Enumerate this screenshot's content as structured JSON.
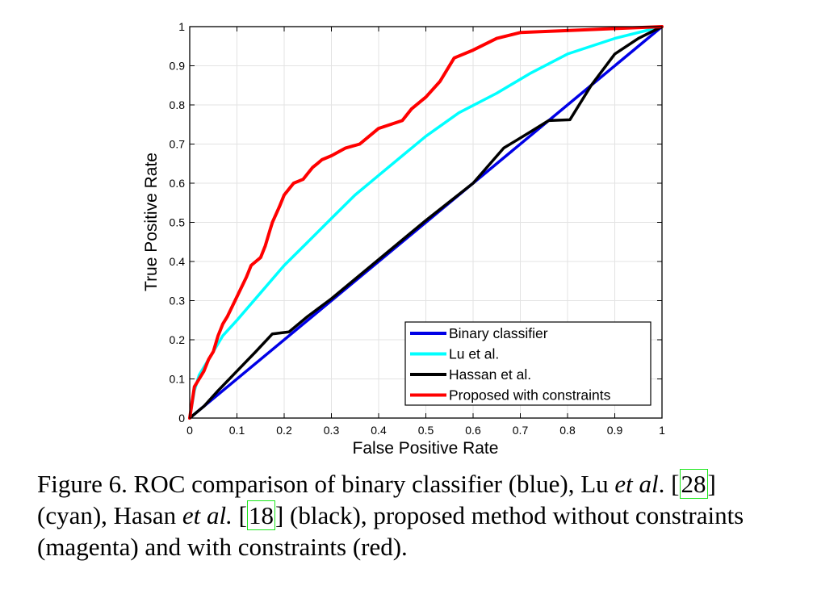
{
  "chart_data": {
    "type": "line",
    "xlabel": "False Positive Rate",
    "ylabel": "True Positive Rate",
    "xlim": [
      0,
      1
    ],
    "ylim": [
      0,
      1
    ],
    "grid": true,
    "legend_position": "bottom-right",
    "x_ticks": [
      "0",
      "0.1",
      "0.2",
      "0.3",
      "0.4",
      "0.5",
      "0.6",
      "0.7",
      "0.8",
      "0.9",
      "1"
    ],
    "y_ticks": [
      "0",
      "0.1",
      "0.2",
      "0.3",
      "0.4",
      "0.5",
      "0.6",
      "0.7",
      "0.8",
      "0.9",
      "1"
    ],
    "series": [
      {
        "name": "Binary classifier",
        "color": "#0000e6",
        "x": [
          0,
          1
        ],
        "y": [
          0,
          1
        ]
      },
      {
        "name": "Lu et al.",
        "color": "#00ffff",
        "x": [
          0,
          0.01,
          0.02,
          0.04,
          0.07,
          0.1,
          0.15,
          0.2,
          0.25,
          0.3,
          0.35,
          0.4,
          0.45,
          0.5,
          0.57,
          0.65,
          0.72,
          0.8,
          0.9,
          1
        ],
        "y": [
          0,
          0.07,
          0.11,
          0.15,
          0.21,
          0.25,
          0.32,
          0.39,
          0.45,
          0.51,
          0.57,
          0.62,
          0.67,
          0.72,
          0.78,
          0.83,
          0.88,
          0.93,
          0.97,
          1
        ]
      },
      {
        "name": "Hassan et al.",
        "color": "#000000",
        "x": [
          0,
          0.03,
          0.06,
          0.1,
          0.14,
          0.175,
          0.21,
          0.25,
          0.3,
          0.4,
          0.5,
          0.6,
          0.665,
          0.72,
          0.76,
          0.805,
          0.85,
          0.9,
          0.95,
          1
        ],
        "y": [
          0,
          0.03,
          0.07,
          0.12,
          0.17,
          0.215,
          0.22,
          0.26,
          0.305,
          0.405,
          0.505,
          0.6,
          0.69,
          0.73,
          0.76,
          0.762,
          0.85,
          0.93,
          0.97,
          1
        ]
      },
      {
        "name": "Proposed with constraints",
        "color": "#ff0000",
        "x": [
          0,
          0.01,
          0.02,
          0.03,
          0.04,
          0.05,
          0.06,
          0.07,
          0.08,
          0.1,
          0.12,
          0.13,
          0.14,
          0.15,
          0.16,
          0.17,
          0.175,
          0.19,
          0.2,
          0.22,
          0.24,
          0.26,
          0.27,
          0.28,
          0.3,
          0.33,
          0.36,
          0.4,
          0.45,
          0.47,
          0.5,
          0.53,
          0.56,
          0.6,
          0.65,
          0.7,
          0.8,
          0.9,
          1
        ],
        "y": [
          0,
          0.08,
          0.1,
          0.12,
          0.15,
          0.17,
          0.21,
          0.24,
          0.26,
          0.31,
          0.36,
          0.39,
          0.4,
          0.41,
          0.44,
          0.48,
          0.5,
          0.54,
          0.57,
          0.6,
          0.61,
          0.64,
          0.65,
          0.66,
          0.67,
          0.69,
          0.7,
          0.74,
          0.76,
          0.79,
          0.82,
          0.86,
          0.92,
          0.94,
          0.97,
          0.985,
          0.99,
          0.995,
          1
        ]
      }
    ]
  },
  "caption": {
    "prefix": "Figure 6. ROC comparison of binary classifier (blue), Lu ",
    "etal_1": "et al",
    "after_etal_1": ".",
    "ref_1_open": "[",
    "ref_1": "28",
    "ref_1_close": "]",
    "mid_1": " (cyan), Hasan ",
    "etal_2": "et al.",
    "space": " ",
    "ref_2_open": "[",
    "ref_2": "18",
    "ref_2_close": "]",
    "suffix": " (black), proposed method without constraints (magenta) and with constraints (red)."
  }
}
